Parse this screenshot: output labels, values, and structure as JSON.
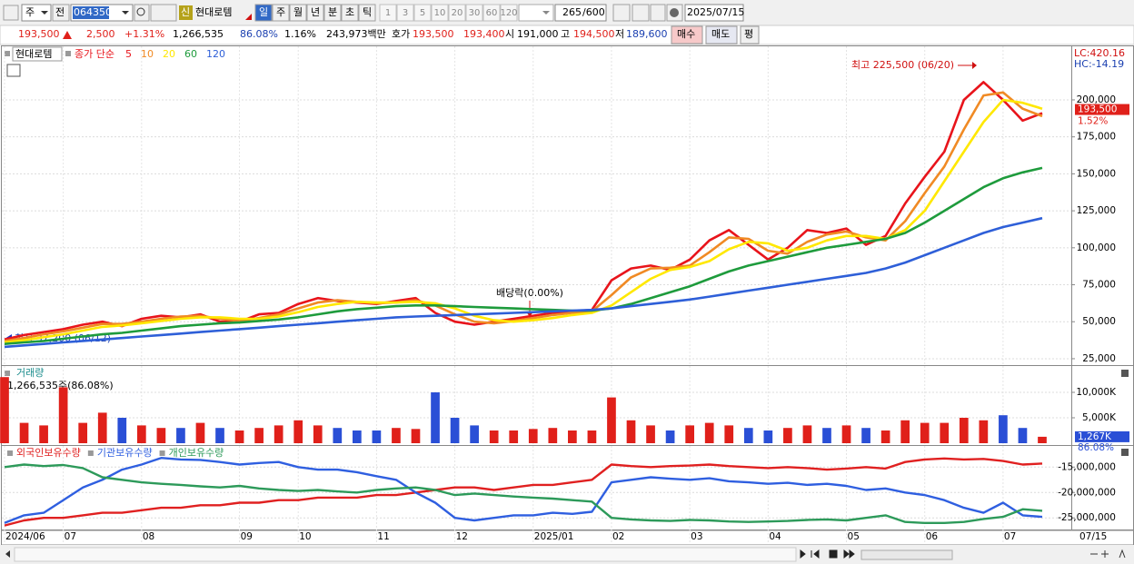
{
  "toolbar": {
    "view": "주",
    "prev": "전",
    "code": "064350",
    "name": "현대로템",
    "periods": [
      "일",
      "주",
      "월",
      "년",
      "분",
      "초",
      "틱"
    ],
    "intervals": [
      "1",
      "3",
      "5",
      "10",
      "20",
      "30",
      "60",
      "120"
    ],
    "count": "265",
    "total": "/600",
    "date": "2025/07/15"
  },
  "quote": {
    "price": "193,500",
    "change": "2,500",
    "rate": "+1.31%",
    "volume": "1,266,535",
    "vol_ratio": "86.08%",
    "turnover": "1.16%",
    "amount": "243,973백만",
    "bid_label": "호가",
    "ask": "193,500",
    "bid": "193,400",
    "open_label": "시",
    "open": "191,000",
    "high_label": "고",
    "high": "194,500",
    "low_label": "저",
    "low": "189,600",
    "buy": "매수",
    "sell": "매도",
    "avg": "평"
  },
  "chart_data": [
    {
      "type": "line",
      "title": "현대로템",
      "legend_label": "종가 단순",
      "grid": true,
      "categories": [
        "2024/06",
        null,
        null,
        "07",
        null,
        null,
        null,
        "08",
        null,
        null,
        null,
        null,
        "09",
        null,
        null,
        "10",
        null,
        null,
        null,
        "11",
        null,
        null,
        null,
        "12",
        null,
        null,
        null,
        "2025/01",
        null,
        null,
        null,
        "02",
        null,
        null,
        null,
        "03",
        null,
        null,
        null,
        "04",
        null,
        null,
        null,
        "05",
        null,
        null,
        null,
        "06",
        null,
        null,
        null,
        "07",
        null,
        null
      ],
      "x_end_label": "07/15",
      "ylim": [
        21900,
        235600
      ],
      "yticks": [
        {
          "value": 25000,
          "label": "25,000"
        },
        {
          "value": 50000,
          "label": "50,000"
        },
        {
          "value": 75000,
          "label": "75,000"
        },
        {
          "value": 100000,
          "label": "100,000"
        },
        {
          "value": 125000,
          "label": "125,000"
        },
        {
          "value": 150000,
          "label": "150,000"
        },
        {
          "value": 175000,
          "label": "175,000"
        },
        {
          "value": 200000,
          "label": "200,000"
        }
      ],
      "series": [
        {
          "name": "5",
          "color": "#e8141b",
          "values": [
            38000,
            41000,
            43000,
            45000,
            48000,
            50000,
            47000,
            52000,
            54000,
            53000,
            55000,
            50000,
            50000,
            55000,
            56000,
            62000,
            66000,
            64000,
            63000,
            62000,
            64000,
            66000,
            56000,
            50000,
            48000,
            50000,
            52000,
            54000,
            56000,
            57000,
            58000,
            78000,
            86000,
            88000,
            85000,
            92000,
            105000,
            112000,
            102000,
            92000,
            100000,
            112000,
            110000,
            113000,
            102000,
            108000,
            130000,
            148000,
            165000,
            200000,
            212000,
            200000,
            186000,
            191000
          ]
        },
        {
          "name": "10",
          "color": "#f08a24",
          "values": [
            37000,
            39000,
            41500,
            43500,
            46000,
            48500,
            48500,
            50000,
            52000,
            53500,
            54000,
            52000,
            50500,
            52500,
            55000,
            59000,
            63000,
            64500,
            63500,
            62500,
            63000,
            64500,
            61000,
            55000,
            50000,
            49000,
            50500,
            52500,
            54500,
            56000,
            57000,
            68000,
            80000,
            86000,
            86500,
            88000,
            97000,
            107000,
            106000,
            98000,
            96000,
            104000,
            109000,
            111000,
            107000,
            105000,
            118000,
            137000,
            155000,
            180000,
            203000,
            205000,
            194000,
            189000
          ]
        },
        {
          "name": "20",
          "color": "#ffe800",
          "values": [
            36000,
            37500,
            39500,
            41500,
            44000,
            46500,
            47500,
            49000,
            50500,
            52000,
            53000,
            53000,
            52000,
            52000,
            53500,
            56500,
            60000,
            62000,
            63500,
            63000,
            63000,
            63500,
            62500,
            59000,
            54000,
            51000,
            50000,
            51000,
            52500,
            54500,
            56000,
            61000,
            70000,
            79000,
            85000,
            87000,
            91000,
            99000,
            104000,
            103000,
            98000,
            100000,
            105000,
            108000,
            108000,
            106000,
            112000,
            125000,
            145000,
            165000,
            185000,
            200000,
            198000,
            194000
          ]
        },
        {
          "name": "60",
          "color": "#1e9b3c",
          "values": [
            35000,
            36000,
            37000,
            38500,
            40000,
            41500,
            42500,
            44000,
            45500,
            47000,
            48000,
            49000,
            49500,
            50500,
            51500,
            53000,
            55000,
            57000,
            58500,
            59500,
            60500,
            61000,
            61000,
            60500,
            60000,
            59500,
            59000,
            58500,
            58000,
            57500,
            57500,
            59000,
            62000,
            66000,
            70000,
            74000,
            79000,
            84000,
            88000,
            91000,
            94000,
            97000,
            100000,
            102000,
            104000,
            106000,
            110000,
            117000,
            125000,
            133000,
            141000,
            147000,
            151000,
            154000
          ]
        },
        {
          "name": "120",
          "color": "#2e5fd8",
          "values": [
            33000,
            34000,
            35000,
            36000,
            37000,
            38000,
            39000,
            40000,
            41000,
            42000,
            43000,
            44000,
            45000,
            46000,
            47000,
            48000,
            49000,
            50000,
            51000,
            52000,
            53000,
            53500,
            54000,
            54500,
            55000,
            55500,
            56000,
            56500,
            57000,
            57500,
            58000,
            59000,
            60500,
            62000,
            63500,
            65000,
            67000,
            69000,
            71000,
            73000,
            75000,
            77000,
            79000,
            81000,
            83000,
            86000,
            90000,
            95000,
            100000,
            105000,
            110000,
            114000,
            117000,
            120000
          ]
        }
      ],
      "annotations": {
        "high": "최고 225,500 (06/20)",
        "low": "최저 37,200 (06/12)",
        "dividend": "배당락(0.00%)",
        "lc": "LC:420.16",
        "hc": "HC:-14.19"
      },
      "current": {
        "value": 193500,
        "label": "193,500",
        "change": "1.52%"
      }
    },
    {
      "type": "bar",
      "title": "거래량",
      "subtitle": "1,266,535주(86.08%)",
      "up_color": "#e0201a",
      "down_color": "#2a4fd6",
      "grid": true,
      "ylim": [
        0,
        15000
      ],
      "yticks": [
        {
          "value": 5000,
          "label": "5,000K"
        },
        {
          "value": 10000,
          "label": "10,000K"
        }
      ],
      "values": [
        13000,
        4000,
        3500,
        11000,
        4000,
        6000,
        5000,
        3500,
        3000,
        3000,
        4000,
        3000,
        2500,
        3000,
        3500,
        4500,
        3500,
        3000,
        2500,
        2500,
        3000,
        2800,
        10000,
        5000,
        3500,
        2500,
        2500,
        2800,
        3000,
        2500,
        2500,
        9000,
        4500,
        3500,
        2500,
        3500,
        4000,
        3500,
        3000,
        2500,
        3000,
        3500,
        3000,
        3500,
        3000,
        2500,
        4500,
        4000,
        4000,
        5000,
        4500,
        5500,
        3000,
        1267
      ],
      "current": {
        "value": 1267,
        "label": "1,267K",
        "ratio": "86.08%"
      }
    },
    {
      "type": "line",
      "grid": true,
      "ylim": [
        -27100000,
        -11200000
      ],
      "yticks": [
        {
          "value": -25000000,
          "label": "-25,000,000"
        },
        {
          "value": -20000000,
          "label": "-20,000,000"
        },
        {
          "value": -15000000,
          "label": "-15,000,000"
        }
      ],
      "series": [
        {
          "name": "외국인보유수량",
          "color": "#e02020",
          "values": [
            -26500000,
            -25500000,
            -25000000,
            -25000000,
            -24500000,
            -24000000,
            -24000000,
            -23500000,
            -23000000,
            -23000000,
            -22500000,
            -22500000,
            -22000000,
            -22000000,
            -21500000,
            -21500000,
            -21000000,
            -21000000,
            -21000000,
            -20500000,
            -20500000,
            -20000000,
            -19500000,
            -19000000,
            -19000000,
            -19500000,
            -19000000,
            -18500000,
            -18500000,
            -18000000,
            -17500000,
            -14500000,
            -14800000,
            -15000000,
            -14800000,
            -14700000,
            -14500000,
            -14800000,
            -15000000,
            -15200000,
            -15000000,
            -15200000,
            -15500000,
            -15300000,
            -15000000,
            -15300000,
            -14000000,
            -13500000,
            -13300000,
            -13500000,
            -13400000,
            -13800000,
            -14500000,
            -14300000
          ]
        },
        {
          "name": "기관보유수량",
          "color": "#2f5fe0",
          "values": [
            -26000000,
            -24500000,
            -24000000,
            -21500000,
            -19000000,
            -17500000,
            -15500000,
            -14500000,
            -13200000,
            -13500000,
            -13600000,
            -14000000,
            -14500000,
            -14200000,
            -14000000,
            -15000000,
            -15500000,
            -15500000,
            -16000000,
            -16800000,
            -17500000,
            -20000000,
            -22000000,
            -25000000,
            -25500000,
            -25000000,
            -24500000,
            -24500000,
            -24000000,
            -24200000,
            -23800000,
            -18000000,
            -17500000,
            -17000000,
            -17300000,
            -17500000,
            -17200000,
            -17800000,
            -18000000,
            -18300000,
            -18100000,
            -18500000,
            -18300000,
            -18700000,
            -19500000,
            -19200000,
            -20000000,
            -20500000,
            -21500000,
            -23000000,
            -24000000,
            -22000000,
            -24500000,
            -24800000
          ]
        },
        {
          "name": "개인보유수량",
          "color": "#2d9a5a",
          "values": [
            -15000000,
            -14500000,
            -14800000,
            -14600000,
            -15200000,
            -17000000,
            -17500000,
            -18000000,
            -18300000,
            -18500000,
            -18800000,
            -19000000,
            -18700000,
            -19200000,
            -19500000,
            -19700000,
            -19500000,
            -19800000,
            -20000000,
            -19500000,
            -19200000,
            -19000000,
            -19500000,
            -20500000,
            -20200000,
            -20500000,
            -20800000,
            -21000000,
            -21200000,
            -21500000,
            -21800000,
            -25000000,
            -25300000,
            -25500000,
            -25600000,
            -25400000,
            -25500000,
            -25700000,
            -25800000,
            -25700000,
            -25600000,
            -25400000,
            -25300000,
            -25500000,
            -25000000,
            -24500000,
            -25800000,
            -26000000,
            -26000000,
            -25800000,
            -25200000,
            -24800000,
            -23300000,
            -23600000
          ]
        }
      ]
    }
  ]
}
